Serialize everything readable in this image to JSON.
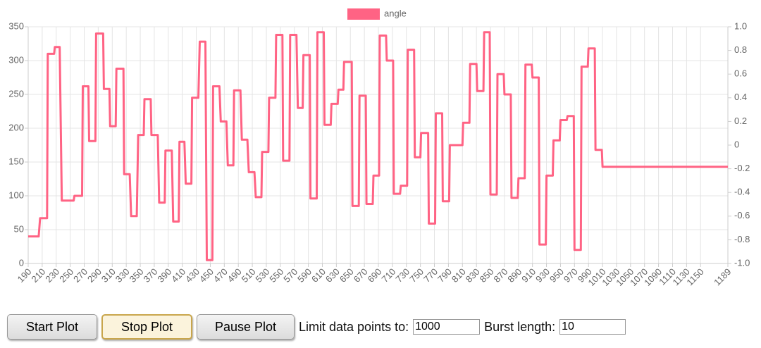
{
  "chart_data": {
    "type": "line",
    "x": [
      190,
      205,
      207,
      217,
      218,
      227,
      228,
      235,
      238,
      255,
      256,
      267,
      268,
      276,
      277,
      286,
      287,
      297,
      298,
      306,
      307,
      315,
      316,
      326,
      327,
      335,
      337,
      345,
      347,
      355,
      356,
      365,
      366,
      375,
      377,
      385,
      386,
      395,
      397,
      405,
      406,
      413,
      415,
      423,
      424,
      433,
      435,
      443,
      445,
      453,
      454,
      463,
      465,
      473,
      475,
      483,
      484,
      493,
      495,
      503,
      505,
      513,
      515,
      523,
      524,
      533,
      534,
      543,
      544,
      553,
      554,
      563,
      564,
      573,
      575,
      582,
      583,
      592,
      593,
      602,
      603,
      612,
      613,
      622,
      623,
      632,
      633,
      640,
      641,
      652,
      653,
      662,
      663,
      672,
      673,
      682,
      683,
      691,
      692,
      701,
      702,
      711,
      712,
      721,
      722,
      731,
      732,
      741,
      742,
      750,
      751,
      761,
      762,
      771,
      772,
      781,
      782,
      791,
      792,
      810,
      811,
      820,
      821,
      830,
      831,
      840,
      841,
      849,
      850,
      859,
      860,
      869,
      870,
      879,
      880,
      889,
      890,
      899,
      900,
      909,
      910,
      919,
      920,
      929,
      930,
      939,
      940,
      949,
      950,
      959,
      960,
      969,
      970,
      979,
      980,
      989,
      990,
      999,
      1000,
      1009,
      1010,
      1189
    ],
    "series": [
      {
        "name": "angle",
        "color": "#ff6384",
        "values": [
          40,
          40,
          67,
          67,
          310,
          310,
          320,
          320,
          93,
          93,
          100,
          100,
          262,
          262,
          181,
          181,
          340,
          340,
          258,
          258,
          203,
          203,
          288,
          288,
          132,
          132,
          70,
          70,
          190,
          190,
          243,
          243,
          190,
          190,
          90,
          90,
          167,
          167,
          62,
          62,
          180,
          180,
          118,
          118,
          245,
          245,
          328,
          328,
          5,
          5,
          262,
          262,
          210,
          210,
          145,
          145,
          256,
          256,
          183,
          183,
          135,
          135,
          98,
          98,
          165,
          165,
          245,
          245,
          338,
          338,
          152,
          152,
          338,
          338,
          230,
          230,
          308,
          308,
          96,
          96,
          342,
          342,
          205,
          205,
          236,
          236,
          257,
          257,
          298,
          298,
          85,
          85,
          248,
          248,
          88,
          88,
          130,
          130,
          337,
          337,
          300,
          300,
          103,
          103,
          115,
          115,
          316,
          316,
          157,
          157,
          193,
          193,
          59,
          59,
          222,
          222,
          92,
          92,
          175,
          175,
          208,
          208,
          295,
          295,
          255,
          255,
          342,
          342,
          102,
          102,
          280,
          280,
          250,
          250,
          97,
          97,
          126,
          126,
          294,
          294,
          275,
          275,
          28,
          28,
          130,
          130,
          182,
          182,
          212,
          212,
          218,
          218,
          20,
          20,
          291,
          291,
          318,
          318,
          168,
          168,
          143,
          143
        ]
      }
    ],
    "xlim": [
      190,
      1189
    ],
    "xticks": [
      190,
      210,
      230,
      250,
      270,
      290,
      310,
      330,
      350,
      370,
      390,
      410,
      430,
      450,
      470,
      490,
      510,
      530,
      550,
      570,
      590,
      610,
      630,
      650,
      670,
      690,
      710,
      730,
      750,
      770,
      790,
      810,
      830,
      850,
      870,
      890,
      910,
      930,
      950,
      970,
      990,
      1010,
      1030,
      1050,
      1070,
      1090,
      1110,
      1130,
      1150,
      1189
    ],
    "ylim": [
      0,
      350
    ],
    "yticks": [
      0,
      50,
      100,
      150,
      200,
      250,
      300,
      350
    ],
    "y2lim": [
      -1,
      1
    ],
    "y2ticks": [
      {
        "value": -1,
        "label": "-1.0"
      },
      -0.8,
      -0.6,
      -0.4,
      -0.2,
      0,
      0.2,
      0.4,
      0.6,
      0.8,
      {
        "value": 1,
        "label": "1.0"
      }
    ],
    "grid": true,
    "legend": "top"
  },
  "controls": {
    "buttons": [
      "Start Plot",
      "Stop Plot",
      "Pause Plot"
    ],
    "limit_label": "Limit data points to:",
    "limit_value": "1000",
    "burst_label": "Burst length:",
    "burst_value": "10"
  }
}
